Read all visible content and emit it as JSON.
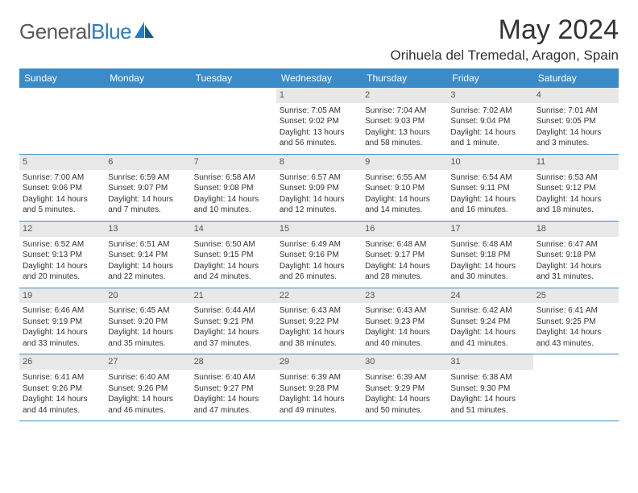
{
  "brand": {
    "name_part1": "General",
    "name_part2": "Blue"
  },
  "title": "May 2024",
  "location": "Orihuela del Tremedal, Aragon, Spain",
  "colors": {
    "header_bg": "#3b8bc8",
    "header_text": "#ffffff",
    "daynum_bg": "#e8e8e8",
    "rule": "#3b8bc8",
    "logo_gray": "#5a5a5a",
    "logo_blue": "#2b7bbf",
    "text": "#333333"
  },
  "typography": {
    "month_title_pt": 34,
    "location_pt": 17,
    "dow_pt": 12,
    "daynum_pt": 11,
    "body_pt": 10
  },
  "dow": [
    "Sunday",
    "Monday",
    "Tuesday",
    "Wednesday",
    "Thursday",
    "Friday",
    "Saturday"
  ],
  "weeks": [
    [
      null,
      null,
      null,
      {
        "n": "1",
        "sunrise": "Sunrise: 7:05 AM",
        "sunset": "Sunset: 9:02 PM",
        "daylight": "Daylight: 13 hours and 56 minutes."
      },
      {
        "n": "2",
        "sunrise": "Sunrise: 7:04 AM",
        "sunset": "Sunset: 9:03 PM",
        "daylight": "Daylight: 13 hours and 58 minutes."
      },
      {
        "n": "3",
        "sunrise": "Sunrise: 7:02 AM",
        "sunset": "Sunset: 9:04 PM",
        "daylight": "Daylight: 14 hours and 1 minute."
      },
      {
        "n": "4",
        "sunrise": "Sunrise: 7:01 AM",
        "sunset": "Sunset: 9:05 PM",
        "daylight": "Daylight: 14 hours and 3 minutes."
      }
    ],
    [
      {
        "n": "5",
        "sunrise": "Sunrise: 7:00 AM",
        "sunset": "Sunset: 9:06 PM",
        "daylight": "Daylight: 14 hours and 5 minutes."
      },
      {
        "n": "6",
        "sunrise": "Sunrise: 6:59 AM",
        "sunset": "Sunset: 9:07 PM",
        "daylight": "Daylight: 14 hours and 7 minutes."
      },
      {
        "n": "7",
        "sunrise": "Sunrise: 6:58 AM",
        "sunset": "Sunset: 9:08 PM",
        "daylight": "Daylight: 14 hours and 10 minutes."
      },
      {
        "n": "8",
        "sunrise": "Sunrise: 6:57 AM",
        "sunset": "Sunset: 9:09 PM",
        "daylight": "Daylight: 14 hours and 12 minutes."
      },
      {
        "n": "9",
        "sunrise": "Sunrise: 6:55 AM",
        "sunset": "Sunset: 9:10 PM",
        "daylight": "Daylight: 14 hours and 14 minutes."
      },
      {
        "n": "10",
        "sunrise": "Sunrise: 6:54 AM",
        "sunset": "Sunset: 9:11 PM",
        "daylight": "Daylight: 14 hours and 16 minutes."
      },
      {
        "n": "11",
        "sunrise": "Sunrise: 6:53 AM",
        "sunset": "Sunset: 9:12 PM",
        "daylight": "Daylight: 14 hours and 18 minutes."
      }
    ],
    [
      {
        "n": "12",
        "sunrise": "Sunrise: 6:52 AM",
        "sunset": "Sunset: 9:13 PM",
        "daylight": "Daylight: 14 hours and 20 minutes."
      },
      {
        "n": "13",
        "sunrise": "Sunrise: 6:51 AM",
        "sunset": "Sunset: 9:14 PM",
        "daylight": "Daylight: 14 hours and 22 minutes."
      },
      {
        "n": "14",
        "sunrise": "Sunrise: 6:50 AM",
        "sunset": "Sunset: 9:15 PM",
        "daylight": "Daylight: 14 hours and 24 minutes."
      },
      {
        "n": "15",
        "sunrise": "Sunrise: 6:49 AM",
        "sunset": "Sunset: 9:16 PM",
        "daylight": "Daylight: 14 hours and 26 minutes."
      },
      {
        "n": "16",
        "sunrise": "Sunrise: 6:48 AM",
        "sunset": "Sunset: 9:17 PM",
        "daylight": "Daylight: 14 hours and 28 minutes."
      },
      {
        "n": "17",
        "sunrise": "Sunrise: 6:48 AM",
        "sunset": "Sunset: 9:18 PM",
        "daylight": "Daylight: 14 hours and 30 minutes."
      },
      {
        "n": "18",
        "sunrise": "Sunrise: 6:47 AM",
        "sunset": "Sunset: 9:18 PM",
        "daylight": "Daylight: 14 hours and 31 minutes."
      }
    ],
    [
      {
        "n": "19",
        "sunrise": "Sunrise: 6:46 AM",
        "sunset": "Sunset: 9:19 PM",
        "daylight": "Daylight: 14 hours and 33 minutes."
      },
      {
        "n": "20",
        "sunrise": "Sunrise: 6:45 AM",
        "sunset": "Sunset: 9:20 PM",
        "daylight": "Daylight: 14 hours and 35 minutes."
      },
      {
        "n": "21",
        "sunrise": "Sunrise: 6:44 AM",
        "sunset": "Sunset: 9:21 PM",
        "daylight": "Daylight: 14 hours and 37 minutes."
      },
      {
        "n": "22",
        "sunrise": "Sunrise: 6:43 AM",
        "sunset": "Sunset: 9:22 PM",
        "daylight": "Daylight: 14 hours and 38 minutes."
      },
      {
        "n": "23",
        "sunrise": "Sunrise: 6:43 AM",
        "sunset": "Sunset: 9:23 PM",
        "daylight": "Daylight: 14 hours and 40 minutes."
      },
      {
        "n": "24",
        "sunrise": "Sunrise: 6:42 AM",
        "sunset": "Sunset: 9:24 PM",
        "daylight": "Daylight: 14 hours and 41 minutes."
      },
      {
        "n": "25",
        "sunrise": "Sunrise: 6:41 AM",
        "sunset": "Sunset: 9:25 PM",
        "daylight": "Daylight: 14 hours and 43 minutes."
      }
    ],
    [
      {
        "n": "26",
        "sunrise": "Sunrise: 6:41 AM",
        "sunset": "Sunset: 9:26 PM",
        "daylight": "Daylight: 14 hours and 44 minutes."
      },
      {
        "n": "27",
        "sunrise": "Sunrise: 6:40 AM",
        "sunset": "Sunset: 9:26 PM",
        "daylight": "Daylight: 14 hours and 46 minutes."
      },
      {
        "n": "28",
        "sunrise": "Sunrise: 6:40 AM",
        "sunset": "Sunset: 9:27 PM",
        "daylight": "Daylight: 14 hours and 47 minutes."
      },
      {
        "n": "29",
        "sunrise": "Sunrise: 6:39 AM",
        "sunset": "Sunset: 9:28 PM",
        "daylight": "Daylight: 14 hours and 49 minutes."
      },
      {
        "n": "30",
        "sunrise": "Sunrise: 6:39 AM",
        "sunset": "Sunset: 9:29 PM",
        "daylight": "Daylight: 14 hours and 50 minutes."
      },
      {
        "n": "31",
        "sunrise": "Sunrise: 6:38 AM",
        "sunset": "Sunset: 9:30 PM",
        "daylight": "Daylight: 14 hours and 51 minutes."
      },
      null
    ]
  ]
}
